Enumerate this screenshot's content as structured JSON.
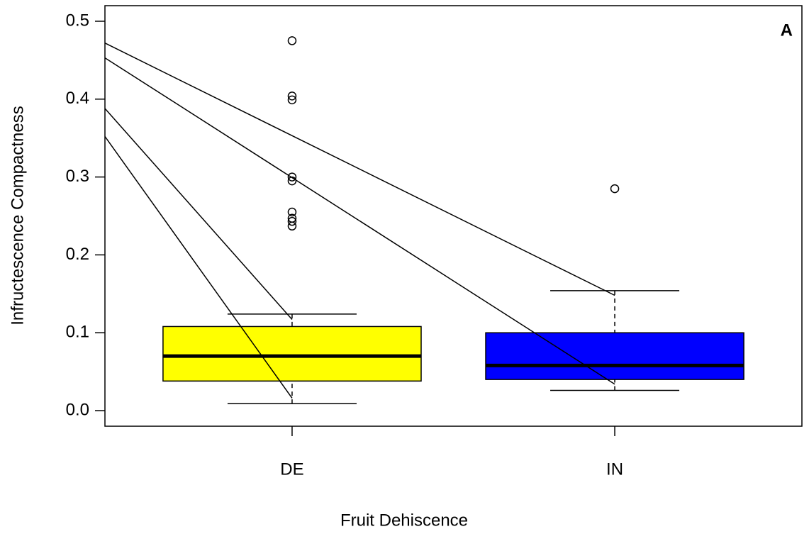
{
  "chart_data": {
    "type": "boxplot",
    "x_label": "Fruit Dehiscence",
    "y_label": "Infructescence Compactness",
    "annotation": "A",
    "categories": [
      "DE",
      "IN"
    ],
    "boxes": [
      {
        "min": 0.009,
        "q1": 0.038,
        "median": 0.07,
        "q3": 0.108,
        "max": 0.124,
        "color": "#ffff00",
        "outliers": [
          0.475,
          0.404,
          0.399,
          0.3,
          0.295,
          0.255,
          0.247,
          0.243,
          0.237
        ]
      },
      {
        "min": 0.026,
        "q1": 0.04,
        "median": 0.058,
        "q3": 0.1,
        "max": 0.154,
        "color": "#0000ff",
        "outliers": [
          0.285
        ]
      }
    ],
    "lines": [
      {
        "x": [
          0.42,
          2
        ],
        "values": [
          0.472,
          0.148
        ],
        "color": "#000000"
      },
      {
        "x": [
          0.42,
          2
        ],
        "values": [
          0.453,
          0.034
        ],
        "color": "#000000"
      },
      {
        "x": [
          0.42,
          1
        ],
        "values": [
          0.388,
          0.117
        ],
        "color": "#000000"
      },
      {
        "x": [
          0.42,
          1
        ],
        "values": [
          0.352,
          0.016
        ],
        "color": "#000000"
      }
    ],
    "xlim": [
      0.42,
      2.58
    ],
    "ylim": [
      -0.02,
      0.52
    ],
    "yticks": [
      {
        "value": 0,
        "label": "0.0"
      },
      0.1,
      0.2,
      0.3,
      0.4,
      0.5
    ]
  }
}
